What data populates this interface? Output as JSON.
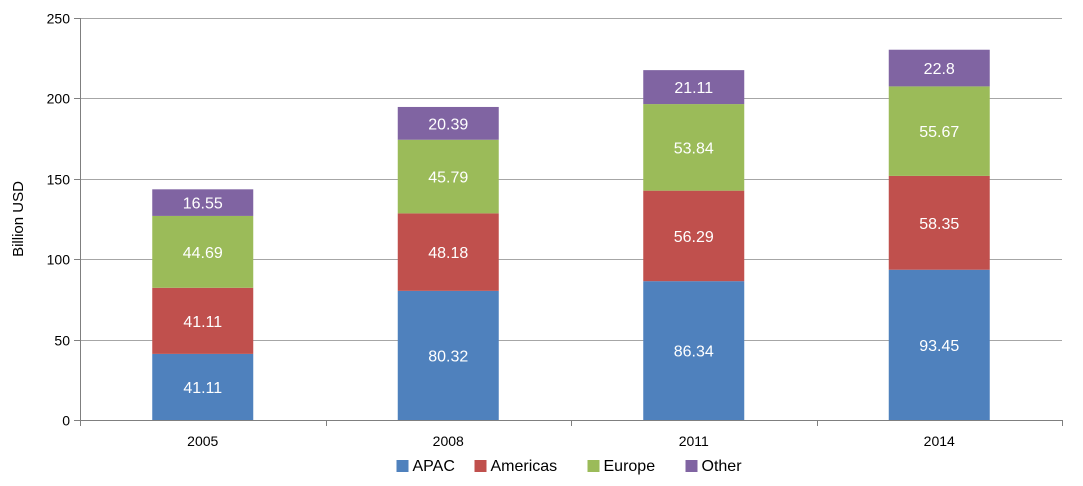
{
  "chart_data": {
    "type": "bar",
    "stacked": true,
    "categories": [
      "2005",
      "2008",
      "2011",
      "2014"
    ],
    "series": [
      {
        "name": "APAC",
        "color": "#4F81BD",
        "values": [
          41.11,
          80.32,
          86.34,
          93.45
        ]
      },
      {
        "name": "Americas",
        "color": "#C0504D",
        "values": [
          41.11,
          48.18,
          56.29,
          58.35
        ]
      },
      {
        "name": "Europe",
        "color": "#9BBB59",
        "values": [
          44.69,
          45.79,
          53.84,
          55.67
        ]
      },
      {
        "name": "Other",
        "color": "#8064A2",
        "values": [
          16.55,
          20.39,
          21.11,
          22.8
        ]
      }
    ],
    "value_labels": [
      [
        "41.11",
        "80.32",
        "86.34",
        "93.45"
      ],
      [
        "41.11",
        "48.18",
        "56.29",
        "58.35"
      ],
      [
        "44.69",
        "45.79",
        "53.84",
        "55.67"
      ],
      [
        "16.55",
        "20.39",
        "21.11",
        "22.8"
      ]
    ],
    "ylabel": "Billion USD",
    "ylim": [
      0,
      250
    ],
    "yticks": [
      "0",
      "50",
      "100",
      "150",
      "200",
      "250"
    ],
    "grid": true,
    "legend_position": "bottom"
  }
}
